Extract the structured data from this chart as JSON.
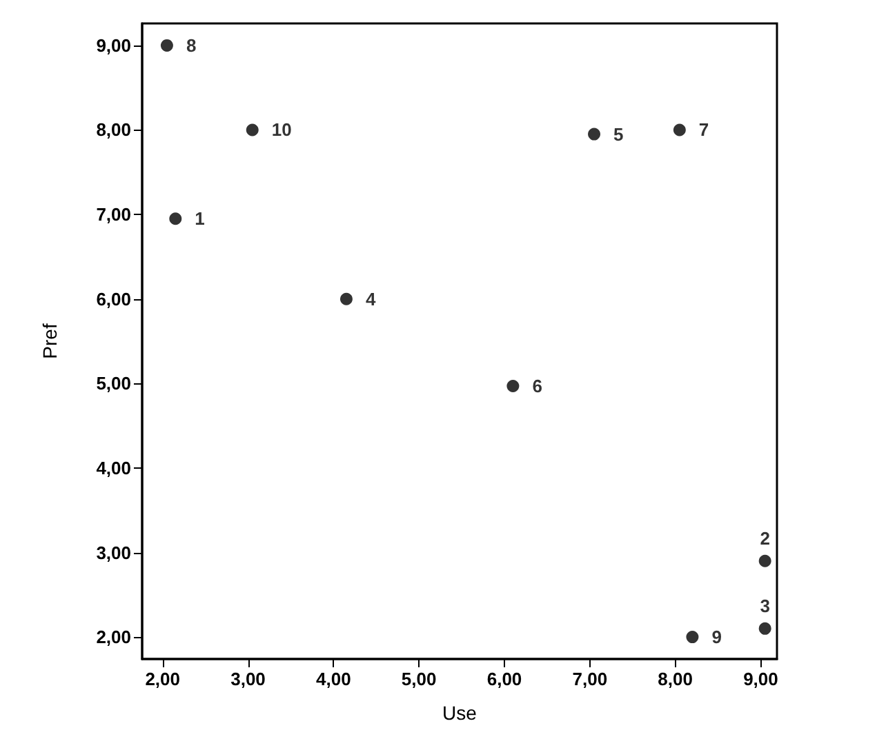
{
  "chart_data": {
    "type": "scatter",
    "xlabel": "Use",
    "ylabel": "Pref",
    "x": [
      2.15,
      9.05,
      9.05,
      4.15,
      7.05,
      6.1,
      8.05,
      2.05,
      8.2,
      3.05
    ],
    "values": [
      6.95,
      2.9,
      2.1,
      6.0,
      7.95,
      4.97,
      8.0,
      9.0,
      2.0,
      8.0
    ],
    "annotations": [
      {
        "text": "1",
        "x": 2.15,
        "y": 6.95
      },
      {
        "text": "2",
        "x": 9.05,
        "y": 2.9
      },
      {
        "text": "3",
        "x": 9.05,
        "y": 2.1
      },
      {
        "text": "4",
        "x": 4.15,
        "y": 6.0
      },
      {
        "text": "5",
        "x": 7.05,
        "y": 7.95
      },
      {
        "text": "6",
        "x": 6.1,
        "y": 4.97
      },
      {
        "text": "7",
        "x": 8.05,
        "y": 8.0
      },
      {
        "text": "8",
        "x": 2.05,
        "y": 9.0
      },
      {
        "text": "9",
        "x": 8.2,
        "y": 2.0
      },
      {
        "text": "10",
        "x": 3.05,
        "y": 8.0
      }
    ],
    "color": "#000000",
    "marker": "circle",
    "grid": false,
    "xlim": [
      1.76,
      9.19
    ],
    "ylim": [
      1.74,
      9.26
    ],
    "xticks": [
      {
        "value": 2,
        "label": "2,00"
      },
      {
        "value": 3,
        "label": "3,00"
      },
      {
        "value": 4,
        "label": "4,00"
      },
      {
        "value": 5,
        "label": "5,00"
      },
      {
        "value": 6,
        "label": "6,00"
      },
      {
        "value": 7,
        "label": "7,00"
      },
      {
        "value": 8,
        "label": "8,00"
      },
      {
        "value": 9,
        "label": "9,00"
      }
    ],
    "yticks": [
      {
        "value": 2,
        "label": "2,00"
      },
      {
        "value": 3,
        "label": "3,00"
      },
      {
        "value": 4,
        "label": "4,00"
      },
      {
        "value": 5,
        "label": "5,00"
      },
      {
        "value": 6,
        "label": "6,00"
      },
      {
        "value": 7,
        "label": "7,00"
      },
      {
        "value": 8,
        "label": "8,00"
      },
      {
        "value": 9,
        "label": "9,00"
      }
    ]
  }
}
